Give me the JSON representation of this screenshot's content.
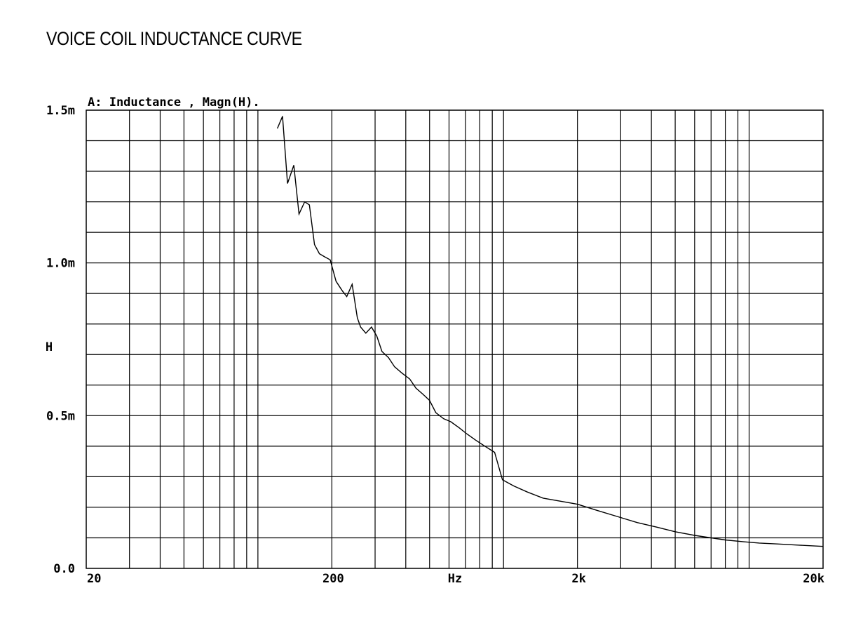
{
  "page": {
    "title": "VOICE COIL INDUCTANCE CURVE"
  },
  "chart_data": {
    "type": "line",
    "title": "A: Inductance , Magn(H).",
    "xlabel": "Hz",
    "ylabel": "H",
    "x_scale": "log",
    "xlim": [
      20,
      20000
    ],
    "ylim": [
      0,
      0.0015
    ],
    "x_ticks": [
      {
        "value": 20,
        "label": "20"
      },
      {
        "value": 200,
        "label": "200"
      },
      {
        "value": 2000,
        "label": "2k"
      },
      {
        "value": 20000,
        "label": "20k"
      }
    ],
    "y_ticks": [
      {
        "value": 0,
        "label": "0.0"
      },
      {
        "value": 0.0005,
        "label": "0.5m"
      },
      {
        "value": 0.001,
        "label": "1.0m"
      },
      {
        "value": 0.0015,
        "label": "1.5m"
      }
    ],
    "grid": true,
    "series": [
      {
        "color": "#000000",
        "points": [
          [
            120,
            0.00144
          ],
          [
            126,
            0.00148
          ],
          [
            132,
            0.00126
          ],
          [
            140,
            0.00132
          ],
          [
            147,
            0.00116
          ],
          [
            155,
            0.0012
          ],
          [
            162,
            0.00119
          ],
          [
            170,
            0.00106
          ],
          [
            178,
            0.00103
          ],
          [
            187,
            0.00102
          ],
          [
            197,
            0.00101
          ],
          [
            208,
            0.00094
          ],
          [
            220,
            0.00091
          ],
          [
            230,
            0.00089
          ],
          [
            242,
            0.00093
          ],
          [
            254,
            0.00082
          ],
          [
            262,
            0.00079
          ],
          [
            275,
            0.00077
          ],
          [
            290,
            0.00079
          ],
          [
            305,
            0.00076
          ],
          [
            320,
            0.00071
          ],
          [
            340,
            0.00069
          ],
          [
            360,
            0.00066
          ],
          [
            385,
            0.00064
          ],
          [
            415,
            0.00062
          ],
          [
            440,
            0.00059
          ],
          [
            470,
            0.00057
          ],
          [
            500,
            0.00055
          ],
          [
            530,
            0.00051
          ],
          [
            570,
            0.00049
          ],
          [
            610,
            0.00048
          ],
          [
            660,
            0.00046
          ],
          [
            710,
            0.00044
          ],
          [
            770,
            0.00042
          ],
          [
            840,
            0.0004
          ],
          [
            920,
            0.00038
          ],
          [
            990,
            0.00029
          ],
          [
            1100,
            0.00027
          ],
          [
            1250,
            0.00025
          ],
          [
            1450,
            0.00023
          ],
          [
            1700,
            0.00022
          ],
          [
            2000,
            0.00021
          ],
          [
            2400,
            0.00019
          ],
          [
            2900,
            0.00017
          ],
          [
            3500,
            0.00015
          ],
          [
            4200,
            0.000135
          ],
          [
            5000,
            0.00012
          ],
          [
            6000,
            0.000108
          ],
          [
            7000,
            0.0001
          ],
          [
            8000,
            9.3e-05
          ],
          [
            9500,
            8.7e-05
          ],
          [
            11000,
            8.3e-05
          ],
          [
            13000,
            8e-05
          ],
          [
            16000,
            7.6e-05
          ],
          [
            20000,
            7.2e-05
          ]
        ]
      }
    ]
  }
}
